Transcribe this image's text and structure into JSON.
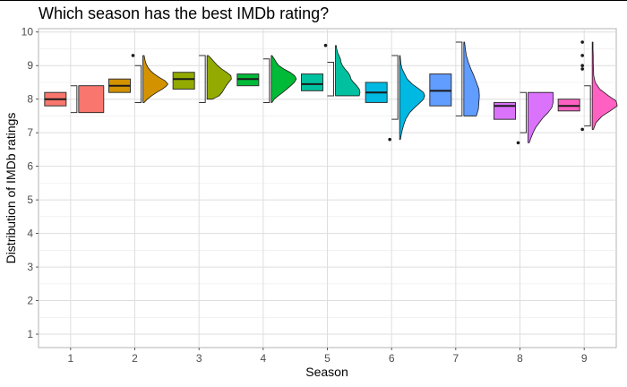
{
  "chart_data": {
    "type": "raincloud",
    "title": "Which season has the best IMDb rating?",
    "xlabel": "Season",
    "ylabel": "Distribution of IMDb ratings",
    "categories": [
      "1",
      "2",
      "3",
      "4",
      "5",
      "6",
      "7",
      "8",
      "9"
    ],
    "ylim": [
      0.6,
      10.1
    ],
    "yticks": [
      1,
      2,
      3,
      4,
      5,
      6,
      7,
      8,
      9,
      10
    ],
    "grid": true,
    "legend": "none",
    "colors": [
      "#F8766D",
      "#D39200",
      "#93AA00",
      "#00BA38",
      "#00C19F",
      "#00B9E3",
      "#619CFF",
      "#DB72FB",
      "#FF61C3"
    ],
    "boxes": [
      {
        "season": "1",
        "min": 7.6,
        "q1": 7.8,
        "median": 8.0,
        "q3": 8.2,
        "max": 8.4,
        "outliers": []
      },
      {
        "season": "2",
        "min": 7.9,
        "q1": 8.2,
        "median": 8.4,
        "q3": 8.6,
        "max": 9.0,
        "outliers": [
          9.3
        ]
      },
      {
        "season": "3",
        "min": 7.9,
        "q1": 8.3,
        "median": 8.6,
        "q3": 8.8,
        "max": 9.3,
        "outliers": []
      },
      {
        "season": "4",
        "min": 7.9,
        "q1": 8.4,
        "median": 8.6,
        "q3": 8.75,
        "max": 9.2,
        "outliers": []
      },
      {
        "season": "5",
        "min": 8.1,
        "q1": 8.25,
        "median": 8.45,
        "q3": 8.75,
        "max": 9.1,
        "outliers": [
          9.6
        ]
      },
      {
        "season": "6",
        "min": 7.4,
        "q1": 7.9,
        "median": 8.2,
        "q3": 8.5,
        "max": 9.3,
        "outliers": [
          6.8
        ]
      },
      {
        "season": "7",
        "min": 7.5,
        "q1": 7.8,
        "median": 8.25,
        "q3": 8.75,
        "max": 9.7,
        "outliers": []
      },
      {
        "season": "8",
        "min": 7.0,
        "q1": 7.4,
        "median": 7.8,
        "q3": 7.9,
        "max": 8.2,
        "outliers": [
          6.7
        ]
      },
      {
        "season": "9",
        "min": 7.2,
        "q1": 7.65,
        "median": 7.8,
        "q3": 8.0,
        "max": 8.4,
        "outliers": [
          7.1,
          8.9,
          9.0,
          9.3,
          9.7
        ]
      }
    ],
    "densities": [
      {
        "season": "1",
        "ys": [
          7.6,
          7.65,
          7.75,
          7.9,
          8.05,
          8.2,
          8.3,
          8.38,
          8.4
        ],
        "dens": [
          1.0,
          1.0,
          1.0,
          1.0,
          1.0,
          1.0,
          1.0,
          1.0,
          1.0
        ]
      },
      {
        "season": "2",
        "ys": [
          7.9,
          8.0,
          8.1,
          8.2,
          8.3,
          8.38,
          8.45,
          8.55,
          8.65,
          8.75,
          8.85,
          8.95,
          9.05,
          9.15,
          9.3
        ],
        "dens": [
          0.05,
          0.18,
          0.35,
          0.55,
          0.78,
          0.92,
          1.0,
          0.88,
          0.65,
          0.45,
          0.3,
          0.2,
          0.13,
          0.09,
          0.05
        ]
      },
      {
        "season": "3",
        "ys": [
          8.0,
          8.1,
          8.2,
          8.3,
          8.4,
          8.5,
          8.6,
          8.7,
          8.8,
          8.9,
          9.0,
          9.1,
          9.2,
          9.3
        ],
        "dens": [
          0.22,
          0.48,
          0.6,
          0.68,
          0.76,
          0.86,
          0.97,
          0.95,
          0.78,
          0.58,
          0.42,
          0.3,
          0.18,
          0.05
        ]
      },
      {
        "season": "4",
        "ys": [
          7.9,
          8.0,
          8.1,
          8.2,
          8.3,
          8.4,
          8.5,
          8.6,
          8.7,
          8.8,
          8.9,
          9.0,
          9.1,
          9.2,
          9.3
        ],
        "dens": [
          0.03,
          0.12,
          0.28,
          0.46,
          0.62,
          0.78,
          0.92,
          1.0,
          0.93,
          0.75,
          0.5,
          0.3,
          0.2,
          0.12,
          0.03
        ]
      },
      {
        "season": "5",
        "ys": [
          8.1,
          8.2,
          8.3,
          8.4,
          8.5,
          8.6,
          8.7,
          8.8,
          8.9,
          9.0,
          9.1,
          9.2,
          9.3,
          9.4,
          9.5,
          9.6
        ],
        "dens": [
          0.95,
          0.98,
          0.95,
          0.85,
          0.72,
          0.62,
          0.58,
          0.5,
          0.38,
          0.28,
          0.22,
          0.2,
          0.14,
          0.08,
          0.05,
          0.03
        ]
      },
      {
        "season": "6",
        "ys": [
          6.8,
          7.0,
          7.2,
          7.4,
          7.6,
          7.75,
          7.9,
          8.0,
          8.1,
          8.2,
          8.3,
          8.45,
          8.6,
          8.75,
          8.9,
          9.05,
          9.2,
          9.3
        ],
        "dens": [
          0.03,
          0.08,
          0.15,
          0.24,
          0.4,
          0.6,
          0.82,
          0.95,
          1.0,
          0.95,
          0.78,
          0.5,
          0.3,
          0.2,
          0.1,
          0.05,
          0.03,
          0.02
        ]
      },
      {
        "season": "7",
        "ys": [
          7.5,
          7.7,
          7.9,
          8.1,
          8.3,
          8.5,
          8.7,
          8.9,
          9.1,
          9.3,
          9.5,
          9.7
        ],
        "dens": [
          0.5,
          0.58,
          0.6,
          0.62,
          0.6,
          0.5,
          0.4,
          0.28,
          0.18,
          0.1,
          0.06,
          0.03
        ]
      },
      {
        "season": "8",
        "ys": [
          6.7,
          6.85,
          7.0,
          7.15,
          7.3,
          7.45,
          7.6,
          7.75,
          7.9,
          8.05,
          8.2
        ],
        "dens": [
          0.05,
          0.12,
          0.2,
          0.3,
          0.45,
          0.6,
          0.8,
          0.95,
          1.0,
          1.0,
          1.0
        ]
      },
      {
        "season": "9",
        "ys": [
          7.1,
          7.3,
          7.5,
          7.65,
          7.8,
          7.95,
          8.1,
          8.3,
          8.5,
          8.7,
          8.9,
          9.1,
          9.3,
          9.5,
          9.7
        ],
        "dens": [
          0.05,
          0.15,
          0.4,
          0.72,
          1.0,
          0.95,
          0.65,
          0.3,
          0.12,
          0.06,
          0.05,
          0.04,
          0.04,
          0.03,
          0.03
        ]
      }
    ]
  }
}
